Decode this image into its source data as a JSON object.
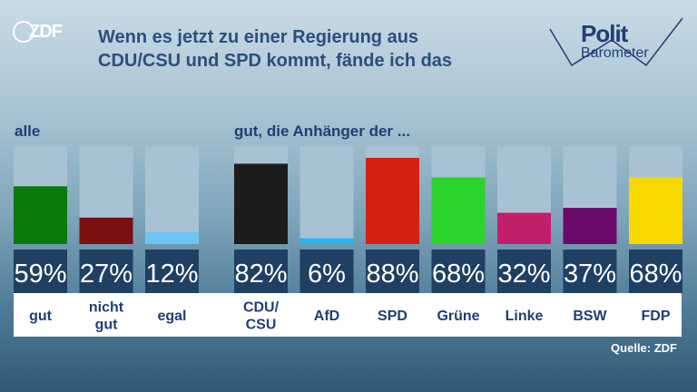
{
  "header": {
    "logo_text": "ZDF",
    "title_line1": "Wenn es jetzt zu einer Regierung aus",
    "title_line2": "CDU/CSU und SPD kommt, fände ich das",
    "brand_line1": "Polit",
    "brand_line2": "Barometer"
  },
  "sections": {
    "left": "alle",
    "right": "gut, die Anhänger der ..."
  },
  "source": "Quelle: ZDF",
  "chart_data": {
    "type": "bar",
    "unit": "%",
    "ylim": [
      0,
      100
    ],
    "groups": [
      {
        "title": "alle",
        "categories": [
          "gut",
          "nicht gut",
          "egal"
        ],
        "values": [
          59,
          27,
          12
        ],
        "labels": [
          "59%",
          "27%",
          "12%"
        ],
        "colors": [
          "#0a7a0a",
          "#7a1010",
          "#6cc4f5"
        ]
      },
      {
        "title": "gut, die Anhänger der ...",
        "categories": [
          "CDU/ CSU",
          "AfD",
          "SPD",
          "Grüne",
          "Linke",
          "BSW",
          "FDP"
        ],
        "values": [
          82,
          6,
          88,
          68,
          32,
          37,
          68
        ],
        "labels": [
          "82%",
          "6%",
          "88%",
          "68%",
          "32%",
          "37%",
          "68%"
        ],
        "colors": [
          "#1c1c1c",
          "#20b8f0",
          "#d62010",
          "#2bd42b",
          "#c21f6a",
          "#6b0a6b",
          "#f8d800"
        ]
      }
    ]
  }
}
